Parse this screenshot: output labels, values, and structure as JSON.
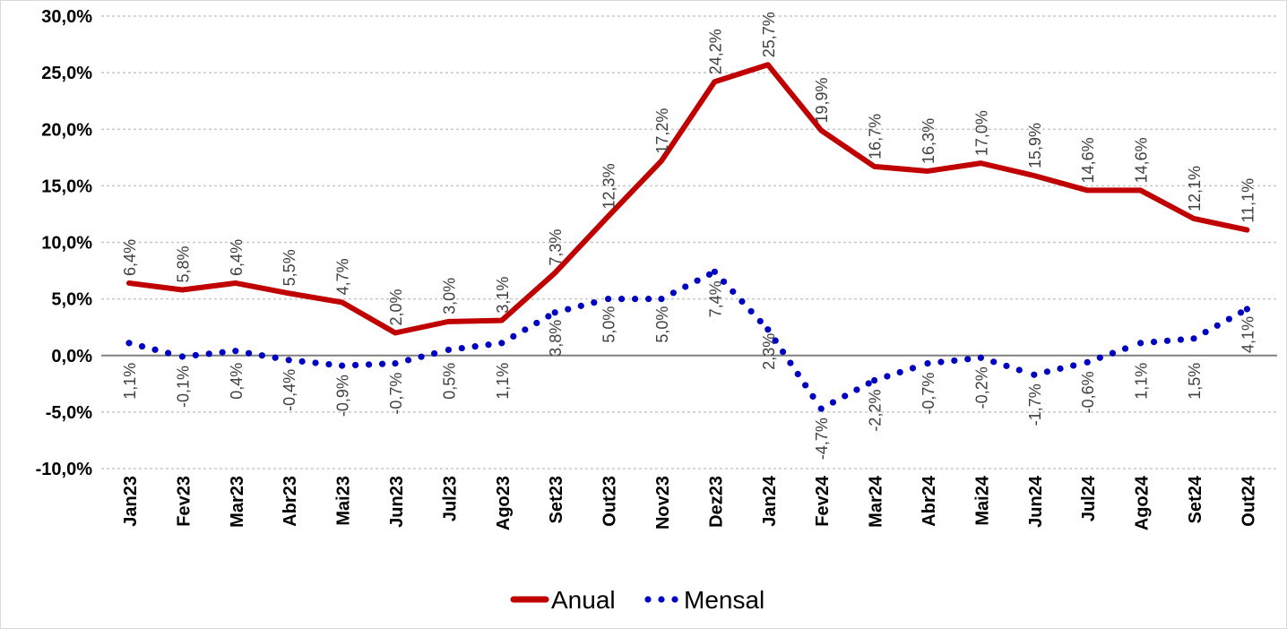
{
  "chart_data": {
    "type": "line",
    "categories": [
      "Jan23",
      "Fev23",
      "Mar23",
      "Abr23",
      "Mai23",
      "Jun23",
      "Jul23",
      "Ago23",
      "Set23",
      "Out23",
      "Nov23",
      "Dez23",
      "Jan24",
      "Fev24",
      "Mar24",
      "Abr24",
      "Mai24",
      "Jun24",
      "Jul24",
      "Ago24",
      "Set24",
      "Out24"
    ],
    "series": [
      {
        "name": "Anual",
        "color": "#c00000",
        "style": "solid",
        "values": [
          6.4,
          5.8,
          6.4,
          5.5,
          4.7,
          2.0,
          3.0,
          3.1,
          7.3,
          12.3,
          17.2,
          24.2,
          25.7,
          19.9,
          16.7,
          16.3,
          17.0,
          15.9,
          14.6,
          14.6,
          12.1,
          11.1
        ],
        "labels": [
          "6,4%",
          "5,8%",
          "6,4%",
          "5,5%",
          "4,7%",
          "2,0%",
          "3,0%",
          "3,1%",
          "7,3%",
          "12,3%",
          "17,2%",
          "24,2%",
          "25,7%",
          "19,9%",
          "16,7%",
          "16,3%",
          "17,0%",
          "15,9%",
          "14,6%",
          "14,6%",
          "12,1%",
          "11,1%"
        ]
      },
      {
        "name": "Mensal",
        "color": "#0000c0",
        "style": "dotted",
        "values": [
          1.1,
          -0.1,
          0.4,
          -0.4,
          -0.9,
          -0.7,
          0.5,
          1.1,
          3.8,
          5.0,
          5.0,
          7.4,
          2.3,
          -4.7,
          -2.2,
          -0.7,
          -0.2,
          -1.7,
          -0.6,
          1.1,
          1.5,
          4.1
        ],
        "labels": [
          "1,1%",
          "-0,1%",
          "0,4%",
          "-0,4%",
          "-0,9%",
          "-0,7%",
          "0,5%",
          "1,1%",
          "3,8%",
          "5,0%",
          "5,0%",
          "7,4%",
          "2,3%",
          "-4,7%",
          "-2,2%",
          "-0,7%",
          "-0,2%",
          "-1,7%",
          "-0,6%",
          "1,1%",
          "1,5%",
          "4,1%"
        ]
      }
    ],
    "y_ticks": [
      "30,0%",
      "25,0%",
      "20,0%",
      "15,0%",
      "10,0%",
      "5,0%",
      "0,0%",
      "-5,0%",
      "-10,0%"
    ],
    "ylim": [
      -10,
      30
    ],
    "grid": true,
    "legend_position": "bottom",
    "title": "",
    "xlabel": "",
    "ylabel": ""
  }
}
